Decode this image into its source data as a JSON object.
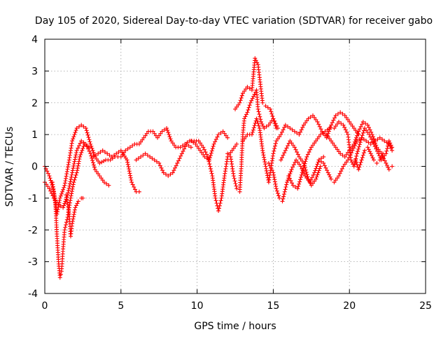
{
  "chart_data": {
    "type": "scatter",
    "title": "Day 105 of 2020, Sidereal Day-to-day VTEC variation (SDTVAR) for receiver gabo",
    "xlabel": "GPS time / hours",
    "ylabel": "SDTVAR / TECUs",
    "xlim": [
      0,
      25
    ],
    "ylim": [
      -4,
      4
    ],
    "xticks": [
      0,
      5,
      10,
      15,
      20,
      25
    ],
    "yticks": [
      -4,
      -3,
      -2,
      -1,
      0,
      1,
      2,
      3,
      4
    ],
    "grid": true,
    "marker": "+",
    "color": "#ff0000",
    "series": [
      {
        "name": "trace-1",
        "points": [
          [
            0,
            0
          ],
          [
            0.3,
            -0.3
          ],
          [
            0.6,
            -0.8
          ],
          [
            0.8,
            -1.5
          ],
          [
            1.0,
            -1.0
          ],
          [
            1.3,
            -0.6
          ],
          [
            1.6,
            0.2
          ],
          [
            1.8,
            0.8
          ],
          [
            2.1,
            1.2
          ],
          [
            2.4,
            1.3
          ],
          [
            2.7,
            1.2
          ],
          [
            3.0,
            0.7
          ],
          [
            3.3,
            0.3
          ],
          [
            3.6,
            0.1
          ],
          [
            4.0,
            0.2
          ],
          [
            4.3,
            0.2
          ],
          [
            4.6,
            0.3
          ],
          [
            5.0,
            0.3
          ],
          [
            5.3,
            0.5
          ],
          [
            5.6,
            0.6
          ],
          [
            5.9,
            0.7
          ],
          [
            6.2,
            0.7
          ],
          [
            6.5,
            0.9
          ],
          [
            6.8,
            1.1
          ],
          [
            7.1,
            1.1
          ],
          [
            7.4,
            0.9
          ],
          [
            7.7,
            1.1
          ],
          [
            8.0,
            1.2
          ],
          [
            8.3,
            0.8
          ],
          [
            8.6,
            0.6
          ],
          [
            8.9,
            0.6
          ],
          [
            9.2,
            0.7
          ],
          [
            9.5,
            0.8
          ],
          [
            9.8,
            0.8
          ],
          [
            10.1,
            0.8
          ],
          [
            10.4,
            0.6
          ],
          [
            10.7,
            0.3
          ],
          [
            11.0,
            -0.3
          ],
          [
            11.2,
            -1.0
          ],
          [
            11.4,
            -1.4
          ],
          [
            11.6,
            -1.0
          ],
          [
            11.8,
            -0.3
          ],
          [
            12.0,
            0.3
          ],
          [
            12.3,
            0.5
          ],
          [
            12.6,
            0.7
          ]
        ]
      },
      {
        "name": "trace-2",
        "points": [
          [
            0.5,
            -0.5
          ],
          [
            0.7,
            -1.2
          ],
          [
            0.8,
            -2.2
          ],
          [
            0.9,
            -3.0
          ],
          [
            1.0,
            -3.5
          ],
          [
            1.1,
            -3.3
          ],
          [
            1.2,
            -2.6
          ],
          [
            1.3,
            -2.0
          ],
          [
            1.5,
            -1.6
          ],
          [
            1.7,
            -1.0
          ],
          [
            1.9,
            -0.5
          ],
          [
            2.1,
            -0.2
          ],
          [
            2.3,
            0.3
          ],
          [
            2.6,
            0.7
          ],
          [
            2.9,
            0.6
          ]
        ]
      },
      {
        "name": "trace-3",
        "points": [
          [
            1.4,
            -0.9
          ],
          [
            1.6,
            -1.5
          ],
          [
            1.7,
            -2.2
          ],
          [
            1.8,
            -1.8
          ],
          [
            2.0,
            -1.3
          ],
          [
            2.2,
            -1.1
          ],
          [
            2.4,
            -1.0
          ],
          [
            2.5,
            -1.0
          ]
        ]
      },
      {
        "name": "trace-4",
        "points": [
          [
            0,
            -0.5
          ],
          [
            0.3,
            -0.7
          ],
          [
            0.6,
            -1.0
          ],
          [
            0.9,
            -1.2
          ],
          [
            1.2,
            -1.3
          ],
          [
            1.5,
            -0.9
          ],
          [
            1.8,
            -0.2
          ],
          [
            2.1,
            0.5
          ],
          [
            2.4,
            0.8
          ],
          [
            2.7,
            0.7
          ],
          [
            3.0,
            0.4
          ],
          [
            3.3,
            -0.1
          ],
          [
            3.6,
            -0.3
          ],
          [
            3.9,
            -0.5
          ],
          [
            4.2,
            -0.6
          ]
        ]
      },
      {
        "name": "trace-5",
        "points": [
          [
            3.2,
            0.3
          ],
          [
            3.5,
            0.4
          ],
          [
            3.8,
            0.5
          ],
          [
            4.1,
            0.4
          ],
          [
            4.4,
            0.3
          ],
          [
            4.7,
            0.4
          ],
          [
            5.0,
            0.5
          ],
          [
            5.4,
            0.2
          ],
          [
            5.7,
            -0.5
          ],
          [
            6.0,
            -0.8
          ],
          [
            6.2,
            -0.8
          ]
        ]
      },
      {
        "name": "trace-6",
        "points": [
          [
            6.0,
            0.2
          ],
          [
            6.3,
            0.3
          ],
          [
            6.6,
            0.4
          ],
          [
            6.9,
            0.3
          ],
          [
            7.2,
            0.2
          ],
          [
            7.5,
            0.1
          ],
          [
            7.8,
            -0.2
          ],
          [
            8.1,
            -0.3
          ],
          [
            8.4,
            -0.2
          ],
          [
            8.7,
            0.1
          ],
          [
            9.0,
            0.4
          ],
          [
            9.3,
            0.7
          ],
          [
            9.6,
            0.6
          ]
        ]
      },
      {
        "name": "trace-7",
        "points": [
          [
            9.6,
            0.8
          ],
          [
            9.9,
            0.7
          ],
          [
            10.2,
            0.5
          ],
          [
            10.5,
            0.3
          ],
          [
            10.8,
            0.2
          ],
          [
            11.1,
            0.7
          ],
          [
            11.4,
            1.0
          ],
          [
            11.7,
            1.1
          ],
          [
            12.0,
            0.9
          ]
        ]
      },
      {
        "name": "trace-8",
        "points": [
          [
            12.0,
            0.4
          ],
          [
            12.2,
            0.3
          ],
          [
            12.4,
            -0.3
          ],
          [
            12.6,
            -0.7
          ],
          [
            12.8,
            -0.8
          ],
          [
            12.9,
            0
          ],
          [
            13.0,
            1.0
          ],
          [
            13.1,
            1.5
          ],
          [
            13.3,
            1.7
          ],
          [
            13.5,
            2.0
          ],
          [
            13.7,
            2.2
          ],
          [
            13.9,
            2.4
          ],
          [
            14.0,
            1.8
          ],
          [
            14.2,
            1.4
          ],
          [
            14.4,
            1.2
          ],
          [
            14.7,
            1.3
          ],
          [
            15.0,
            1.5
          ],
          [
            15.3,
            1.2
          ]
        ]
      },
      {
        "name": "trace-9",
        "points": [
          [
            12.5,
            1.8
          ],
          [
            12.8,
            2.0
          ],
          [
            13.0,
            2.3
          ],
          [
            13.3,
            2.5
          ],
          [
            13.6,
            2.4
          ],
          [
            13.8,
            3.4
          ],
          [
            14.0,
            3.2
          ],
          [
            14.1,
            2.8
          ],
          [
            14.3,
            2.0
          ],
          [
            14.5,
            1.9
          ],
          [
            14.8,
            1.8
          ],
          [
            15.0,
            1.5
          ],
          [
            15.2,
            1.2
          ]
        ]
      },
      {
        "name": "trace-10",
        "points": [
          [
            13.0,
            0.8
          ],
          [
            13.3,
            1.0
          ],
          [
            13.6,
            1.0
          ],
          [
            13.9,
            1.5
          ],
          [
            14.1,
            1.2
          ],
          [
            14.3,
            0.5
          ],
          [
            14.5,
            0
          ],
          [
            14.7,
            -0.5
          ],
          [
            14.8,
            -0.2
          ],
          [
            15.0,
            0.4
          ],
          [
            15.2,
            0.8
          ],
          [
            15.5,
            1.0
          ],
          [
            15.8,
            1.3
          ],
          [
            16.1,
            1.2
          ],
          [
            16.4,
            1.1
          ],
          [
            16.7,
            1.0
          ],
          [
            17.0,
            1.3
          ],
          [
            17.3,
            1.5
          ],
          [
            17.6,
            1.6
          ],
          [
            17.9,
            1.4
          ],
          [
            18.2,
            1.1
          ],
          [
            18.5,
            0.9
          ],
          [
            18.8,
            1.3
          ],
          [
            19.1,
            1.6
          ],
          [
            19.4,
            1.7
          ],
          [
            19.7,
            1.6
          ],
          [
            20.0,
            1.4
          ],
          [
            20.3,
            1.2
          ],
          [
            20.6,
            1.0
          ]
        ]
      },
      {
        "name": "trace-11",
        "points": [
          [
            14.7,
            0.1
          ],
          [
            15.0,
            -0.2
          ],
          [
            15.2,
            -0.7
          ],
          [
            15.4,
            -1.0
          ],
          [
            15.6,
            -1.1
          ],
          [
            15.9,
            -0.5
          ],
          [
            16.2,
            -0.1
          ],
          [
            16.5,
            0.2
          ],
          [
            16.8,
            0
          ],
          [
            17.1,
            -0.3
          ],
          [
            17.4,
            -0.5
          ],
          [
            17.7,
            -0.2
          ],
          [
            18.0,
            0.2
          ],
          [
            18.3,
            0.3
          ]
        ]
      },
      {
        "name": "trace-12",
        "points": [
          [
            15.5,
            0.2
          ],
          [
            15.8,
            0.5
          ],
          [
            16.1,
            0.8
          ],
          [
            16.4,
            0.6
          ],
          [
            16.7,
            0.3
          ],
          [
            17.0,
            0.1
          ],
          [
            17.3,
            -0.4
          ],
          [
            17.5,
            -0.6
          ],
          [
            17.8,
            -0.4
          ],
          [
            18.1,
            0
          ]
        ]
      },
      {
        "name": "trace-13",
        "points": [
          [
            18.0,
            0.2
          ],
          [
            18.3,
            0.1
          ],
          [
            18.6,
            -0.2
          ],
          [
            18.8,
            -0.4
          ],
          [
            19.0,
            -0.5
          ],
          [
            19.3,
            -0.3
          ],
          [
            19.6,
            0
          ],
          [
            19.9,
            0.2
          ],
          [
            20.2,
            0.5
          ],
          [
            20.5,
            0.8
          ],
          [
            20.8,
            0.9
          ],
          [
            21.1,
            0.8
          ],
          [
            21.4,
            0.7
          ],
          [
            21.7,
            0.8
          ],
          [
            22.0,
            0.9
          ],
          [
            22.3,
            0.8
          ],
          [
            22.6,
            0.7
          ],
          [
            22.8,
            0.5
          ]
        ]
      },
      {
        "name": "trace-14",
        "points": [
          [
            19.0,
            1.2
          ],
          [
            19.3,
            1.4
          ],
          [
            19.6,
            1.3
          ],
          [
            19.9,
            1.0
          ],
          [
            20.0,
            0.6
          ],
          [
            20.1,
            0.2
          ],
          [
            20.3,
            0
          ],
          [
            20.5,
            0.4
          ],
          [
            20.8,
            0.9
          ],
          [
            21.0,
            1.2
          ],
          [
            21.3,
            1.0
          ],
          [
            21.6,
            0.7
          ],
          [
            21.9,
            0.4
          ],
          [
            22.1,
            0.2
          ],
          [
            22.4,
            0.4
          ],
          [
            22.6,
            0.8
          ],
          [
            22.8,
            0.6
          ]
        ]
      },
      {
        "name": "trace-15",
        "points": [
          [
            18.5,
            1.0
          ],
          [
            18.8,
            0.8
          ],
          [
            19.1,
            0.6
          ],
          [
            19.4,
            0.4
          ],
          [
            19.7,
            0.3
          ],
          [
            20.0,
            0.5
          ],
          [
            20.3,
            0.7
          ],
          [
            20.6,
            1.1
          ],
          [
            20.9,
            1.4
          ],
          [
            21.2,
            1.3
          ],
          [
            21.5,
            1.0
          ],
          [
            21.8,
            0.6
          ],
          [
            22.1,
            0.4
          ],
          [
            22.4,
            0.1
          ],
          [
            22.6,
            -0.1
          ],
          [
            22.8,
            0.0
          ]
        ]
      },
      {
        "name": "trace-16",
        "points": [
          [
            16.0,
            -0.3
          ],
          [
            16.3,
            -0.6
          ],
          [
            16.6,
            -0.7
          ],
          [
            16.9,
            -0.2
          ],
          [
            17.2,
            0.3
          ],
          [
            17.5,
            0.6
          ],
          [
            17.8,
            0.8
          ],
          [
            18.1,
            1.0
          ],
          [
            18.4,
            1.1
          ],
          [
            18.7,
            1.2
          ]
        ]
      },
      {
        "name": "trace-17",
        "points": [
          [
            20.4,
            0.2
          ],
          [
            20.6,
            -0.1
          ],
          [
            20.8,
            0.2
          ],
          [
            21.0,
            0.5
          ],
          [
            21.2,
            0.6
          ],
          [
            21.4,
            0.4
          ],
          [
            21.6,
            0.2
          ],
          [
            21.8,
            0.1
          ],
          [
            22.0,
            0.2
          ],
          [
            22.2,
            0.4
          ]
        ]
      }
    ]
  }
}
